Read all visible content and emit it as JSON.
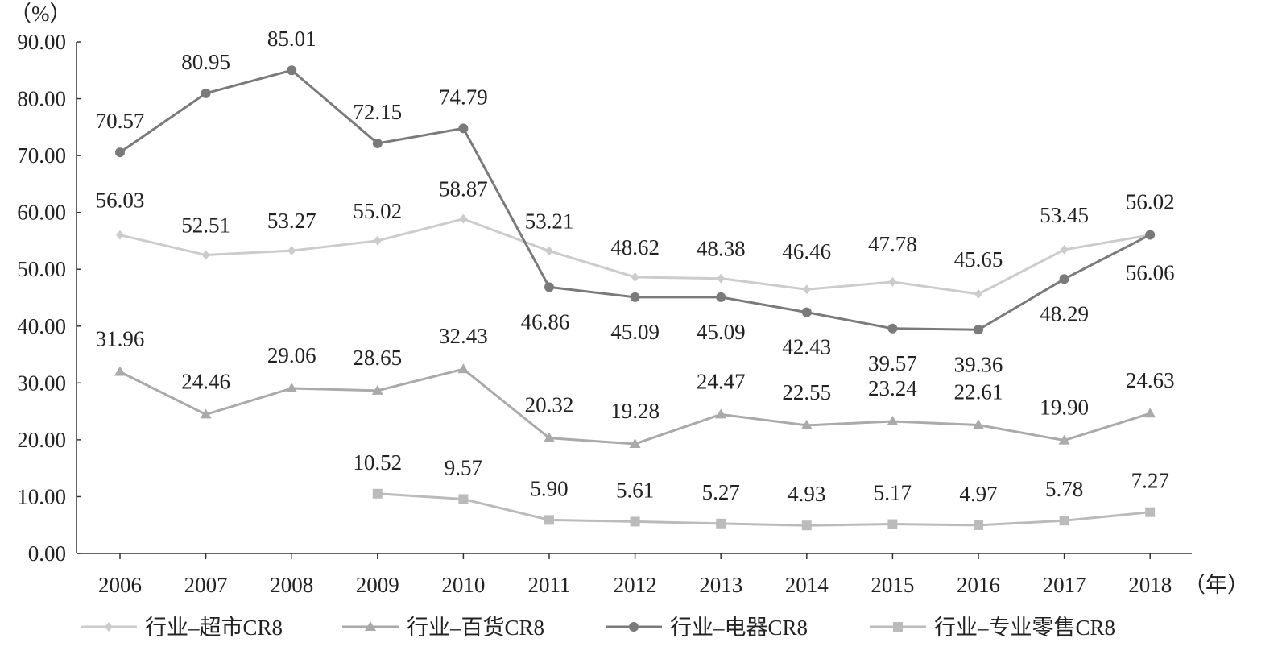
{
  "chart_data": {
    "type": "line",
    "y_unit": "（%）",
    "x_unit": "（年）",
    "categories": [
      "2006",
      "2007",
      "2008",
      "2009",
      "2010",
      "2011",
      "2012",
      "2013",
      "2014",
      "2015",
      "2016",
      "2017",
      "2018"
    ],
    "ylim": [
      0,
      90
    ],
    "yticks": [
      "0.00",
      "10.00",
      "20.00",
      "30.00",
      "40.00",
      "50.00",
      "60.00",
      "70.00",
      "80.00",
      "90.00"
    ],
    "grid": false,
    "legend_position": "bottom",
    "series": [
      {
        "name": "行业–超市CR8",
        "color": "#cccccc",
        "marker": "diamond",
        "values": [
          56.03,
          52.51,
          53.27,
          55.02,
          58.87,
          53.21,
          48.62,
          48.38,
          46.46,
          47.78,
          45.65,
          53.45,
          56.02
        ],
        "labels": [
          "56.03",
          "52.51",
          "53.27",
          "55.02",
          "58.87",
          "53.21",
          "48.62",
          "48.38",
          "46.46",
          "47.78",
          "45.65",
          "53.45",
          "56.02"
        ]
      },
      {
        "name": "行业–百货CR8",
        "color": "#aaaaaa",
        "marker": "triangle",
        "values": [
          31.96,
          24.46,
          29.06,
          28.65,
          32.43,
          20.32,
          19.28,
          24.47,
          22.55,
          23.24,
          22.61,
          19.9,
          24.63
        ],
        "labels": [
          "31.96",
          "24.46",
          "29.06",
          "28.65",
          "32.43",
          "20.32",
          "19.28",
          "24.47",
          "22.55",
          "23.24",
          "22.61",
          "19.90",
          "24.63"
        ]
      },
      {
        "name": "行业–电器CR8",
        "color": "#7a7a7a",
        "marker": "circle",
        "values": [
          70.57,
          80.95,
          85.01,
          72.15,
          74.79,
          46.86,
          45.09,
          45.09,
          42.43,
          39.57,
          39.36,
          48.29,
          56.06
        ],
        "labels": [
          "70.57",
          "80.95",
          "85.01",
          "72.15",
          "74.79",
          "46.86",
          "45.09",
          "45.09",
          "42.43",
          "39.57",
          "39.36",
          "48.29",
          "56.06"
        ]
      },
      {
        "name": "行业–专业零售CR8",
        "color": "#bbbbbb",
        "marker": "square",
        "values": [
          null,
          null,
          null,
          10.52,
          9.57,
          5.9,
          5.61,
          5.27,
          4.93,
          5.17,
          4.97,
          5.78,
          7.27
        ],
        "labels": [
          null,
          null,
          null,
          "10.52",
          "9.57",
          "5.90",
          "5.61",
          "5.27",
          "4.93",
          "5.17",
          "4.97",
          "5.78",
          "7.27"
        ]
      }
    ]
  }
}
